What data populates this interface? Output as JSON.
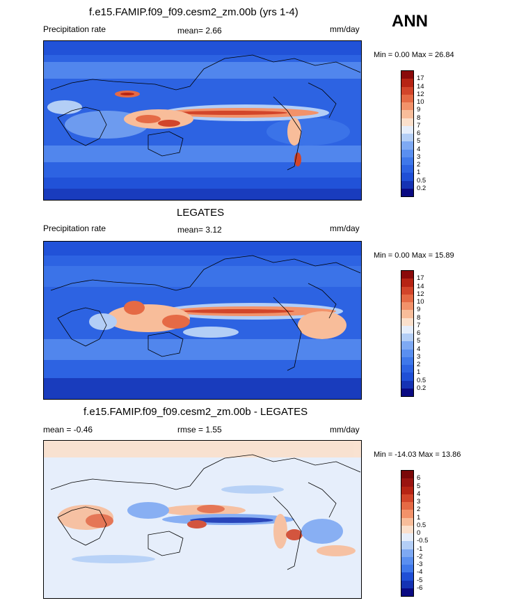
{
  "season": "ANN",
  "panels": [
    {
      "title": "f.e15.FAMIP.f09_f09.cesm2_zm.00b (yrs 1-4)",
      "left_label": "Precipitation rate",
      "center_label": "mean=   2.66",
      "units": "mm/day",
      "minmax": "Min =   0.00 Max =  26.84",
      "colorbar": [
        "0.2",
        "0.5",
        "1",
        "2",
        "3",
        "4",
        "5",
        "6",
        "7",
        "8",
        "9",
        "10",
        "12",
        "14",
        "17"
      ]
    },
    {
      "title": "LEGATES",
      "left_label": "Precipitation rate",
      "center_label": "mean=   3.12",
      "units": "mm/day",
      "minmax": "Min =   0.00 Max =  15.89",
      "colorbar": [
        "0.2",
        "0.5",
        "1",
        "2",
        "3",
        "4",
        "5",
        "6",
        "7",
        "8",
        "9",
        "10",
        "12",
        "14",
        "17"
      ]
    },
    {
      "title": "f.e15.FAMIP.f09_f09.cesm2_zm.00b - LEGATES",
      "left_label": "mean =  -0.46",
      "center_label": "rmse =   1.55",
      "units": "mm/day",
      "minmax": "Min = -14.03 Max =  13.86",
      "colorbar": [
        "-6",
        "-5",
        "-4",
        "-3",
        "-2",
        "-1",
        "-0.5",
        "0",
        "0.5",
        "1",
        "2",
        "3",
        "4",
        "5",
        "6"
      ]
    }
  ],
  "colors": {
    "abs_scale": [
      "#0a0a82",
      "#1533b4",
      "#1f4fd6",
      "#2d63e2",
      "#3f78ea",
      "#5a8ff0",
      "#7ea9f3",
      "#b3cef6",
      "#e6eefb",
      "#fbe0cc",
      "#f8bd9a",
      "#f2926a",
      "#e56a45",
      "#d2452a",
      "#b62414",
      "#8a0a0a"
    ],
    "diff_scale": [
      "#0a0a82",
      "#1533b4",
      "#1f4fd6",
      "#3f78ea",
      "#5a8ff0",
      "#7ea9f3",
      "#b3cef6",
      "#e6eefb",
      "#fbe0cc",
      "#f8bd9a",
      "#f2926a",
      "#e56a45",
      "#d2452a",
      "#b62414",
      "#9a1410",
      "#7a0808"
    ]
  },
  "chart_data": [
    {
      "type": "heatmap",
      "title": "f.e15.FAMIP.f09_f09.cesm2_zm.00b (yrs 1-4)",
      "variable": "Precipitation rate",
      "units": "mm/day",
      "mean": 2.66,
      "min": 0.0,
      "max": 26.84,
      "contour_levels": [
        0.2,
        0.5,
        1,
        2,
        3,
        4,
        5,
        6,
        7,
        8,
        9,
        10,
        12,
        14,
        17
      ]
    },
    {
      "type": "heatmap",
      "title": "LEGATES",
      "variable": "Precipitation rate",
      "units": "mm/day",
      "mean": 3.12,
      "min": 0.0,
      "max": 15.89,
      "contour_levels": [
        0.2,
        0.5,
        1,
        2,
        3,
        4,
        5,
        6,
        7,
        8,
        9,
        10,
        12,
        14,
        17
      ]
    },
    {
      "type": "heatmap",
      "title": "f.e15.FAMIP.f09_f09.cesm2_zm.00b - LEGATES",
      "units": "mm/day",
      "mean": -0.46,
      "rmse": 1.55,
      "min": -14.03,
      "max": 13.86,
      "contour_levels": [
        -6,
        -5,
        -4,
        -3,
        -2,
        -1,
        -0.5,
        0,
        0.5,
        1,
        2,
        3,
        4,
        5,
        6
      ]
    }
  ]
}
